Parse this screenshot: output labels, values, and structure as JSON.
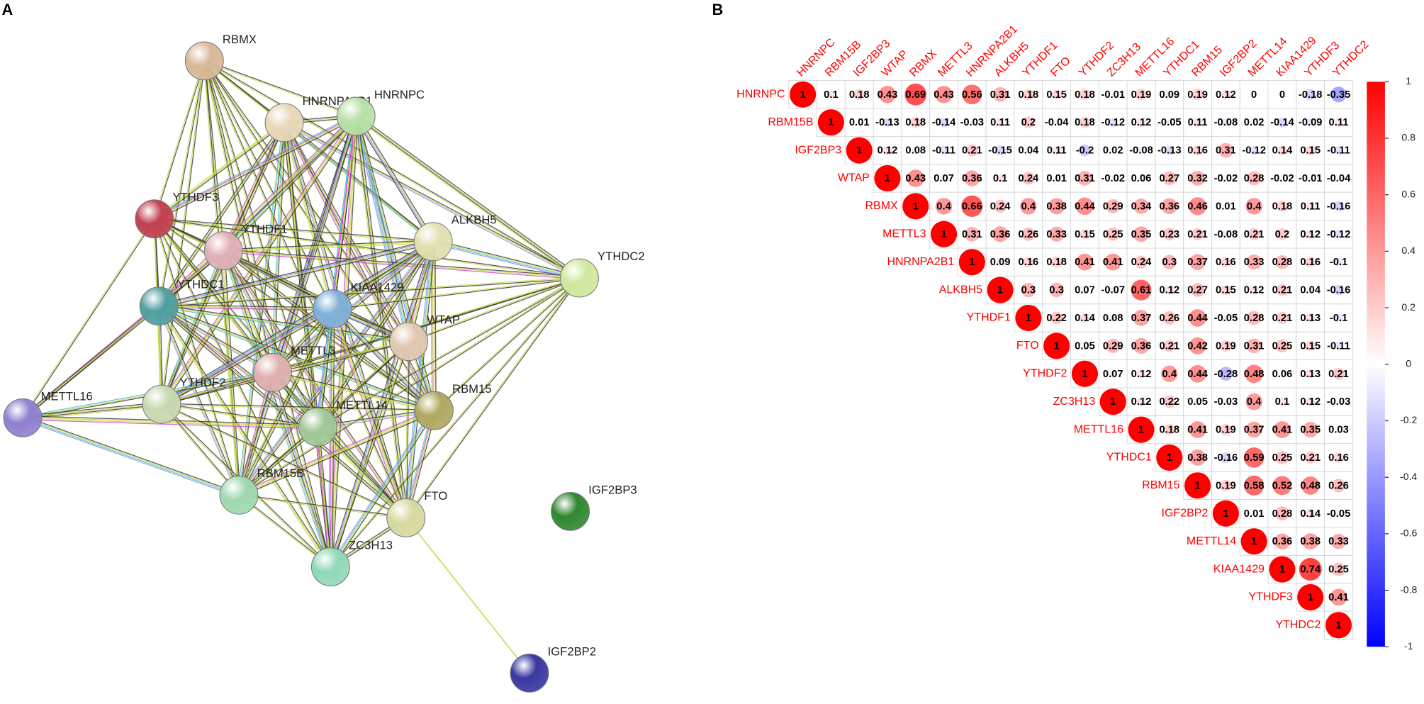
{
  "panel_labels": [
    "A",
    "B"
  ],
  "network": {
    "nodes": [
      "RBMX",
      "HNRNPA2B1",
      "HNRNPC",
      "YTHDF3",
      "YTHDF1",
      "ALKBH5",
      "YTHDC2",
      "YTHDC1",
      "KIAA1429",
      "WTAP",
      "METTL3",
      "METTL16",
      "YTHDF2",
      "METTL14",
      "RBM15",
      "RBM15B",
      "FTO",
      "ZC3H13",
      "IGF2BP3",
      "IGF2BP2"
    ]
  },
  "chart_data": {
    "type": "corrplot",
    "categories": [
      "HNRNPC",
      "RBM15B",
      "IGF2BP3",
      "WTAP",
      "RBMX",
      "METTL3",
      "HNRNPA2B1",
      "ALKBH5",
      "YTHDF1",
      "FTO",
      "YTHDF2",
      "ZC3H13",
      "METTL16",
      "YTHDC1",
      "RBM15",
      "IGF2BP2",
      "METTL14",
      "KIAA1429",
      "YTHDF3",
      "YTHDC2"
    ],
    "values": [
      [
        1,
        0.1,
        0.18,
        0.43,
        0.69,
        0.43,
        0.56,
        0.31,
        0.18,
        0.15,
        0.18,
        -0.01,
        0.19,
        0.09,
        0.19,
        0.12,
        0,
        0,
        -0.18,
        -0.35
      ],
      [
        1,
        0.01,
        -0.13,
        0.18,
        -0.14,
        -0.03,
        0.11,
        0.2,
        -0.04,
        0.18,
        -0.12,
        0.12,
        -0.05,
        0.11,
        -0.08,
        0.02,
        -0.14,
        -0.09,
        0.11
      ],
      [
        1,
        0.12,
        0.08,
        -0.11,
        0.21,
        -0.15,
        0.04,
        0.11,
        -0.2,
        0.02,
        -0.08,
        -0.13,
        0.16,
        0.31,
        -0.12,
        0.14,
        0.15,
        -0.11
      ],
      [
        1,
        0.43,
        0.07,
        0.36,
        0.1,
        0.24,
        0.01,
        0.31,
        -0.02,
        0.06,
        0.27,
        0.32,
        -0.02,
        0.28,
        -0.02,
        -0.01,
        -0.04
      ],
      [
        1,
        0.4,
        0.66,
        0.24,
        0.4,
        0.38,
        0.44,
        0.29,
        0.34,
        0.36,
        0.46,
        0.01,
        0.4,
        0.18,
        0.11,
        -0.16
      ],
      [
        1,
        0.31,
        0.36,
        0.26,
        0.33,
        0.15,
        0.25,
        0.35,
        0.23,
        0.21,
        -0.08,
        0.21,
        0.2,
        0.12,
        -0.12
      ],
      [
        1,
        0.09,
        0.16,
        0.18,
        0.41,
        0.41,
        0.24,
        0.3,
        0.37,
        0.16,
        0.33,
        0.28,
        0.16,
        -0.1
      ],
      [
        1,
        0.3,
        0.3,
        0.07,
        -0.07,
        0.61,
        0.12,
        0.27,
        0.15,
        0.12,
        0.21,
        0.04,
        -0.16
      ],
      [
        1,
        0.22,
        0.14,
        0.08,
        0.37,
        0.26,
        0.44,
        -0.05,
        0.28,
        0.21,
        0.13,
        -0.1
      ],
      [
        1,
        0.05,
        0.29,
        0.36,
        0.21,
        0.42,
        0.19,
        0.31,
        0.25,
        0.15,
        -0.11
      ],
      [
        1,
        0.07,
        0.12,
        0.4,
        0.44,
        -0.28,
        0.48,
        0.06,
        0.13,
        0.21
      ],
      [
        1,
        0.12,
        0.22,
        0.05,
        -0.03,
        0.4,
        0.1,
        0.12,
        -0.03
      ],
      [
        1,
        0.18,
        0.41,
        0.19,
        0.37,
        0.41,
        0.35,
        0.03
      ],
      [
        1,
        0.38,
        -0.16,
        0.59,
        0.25,
        0.21,
        0.16
      ],
      [
        1,
        0.19,
        0.58,
        0.52,
        0.48,
        0.26
      ],
      [
        1,
        0.01,
        0.28,
        0.14,
        -0.05
      ],
      [
        1,
        0.36,
        0.38,
        0.33
      ],
      [
        1,
        0.74,
        0.25
      ],
      [
        1,
        0.41
      ],
      [
        1
      ]
    ],
    "clim": [
      -1,
      1
    ],
    "cticks": [
      -1,
      -0.8,
      -0.6,
      -0.4,
      -0.2,
      0,
      0.2,
      0.4,
      0.6,
      0.8,
      1
    ],
    "colors": [
      "#0000ff",
      "#ffffff",
      "#ff0000"
    ],
    "label_color": "#ff0000"
  }
}
